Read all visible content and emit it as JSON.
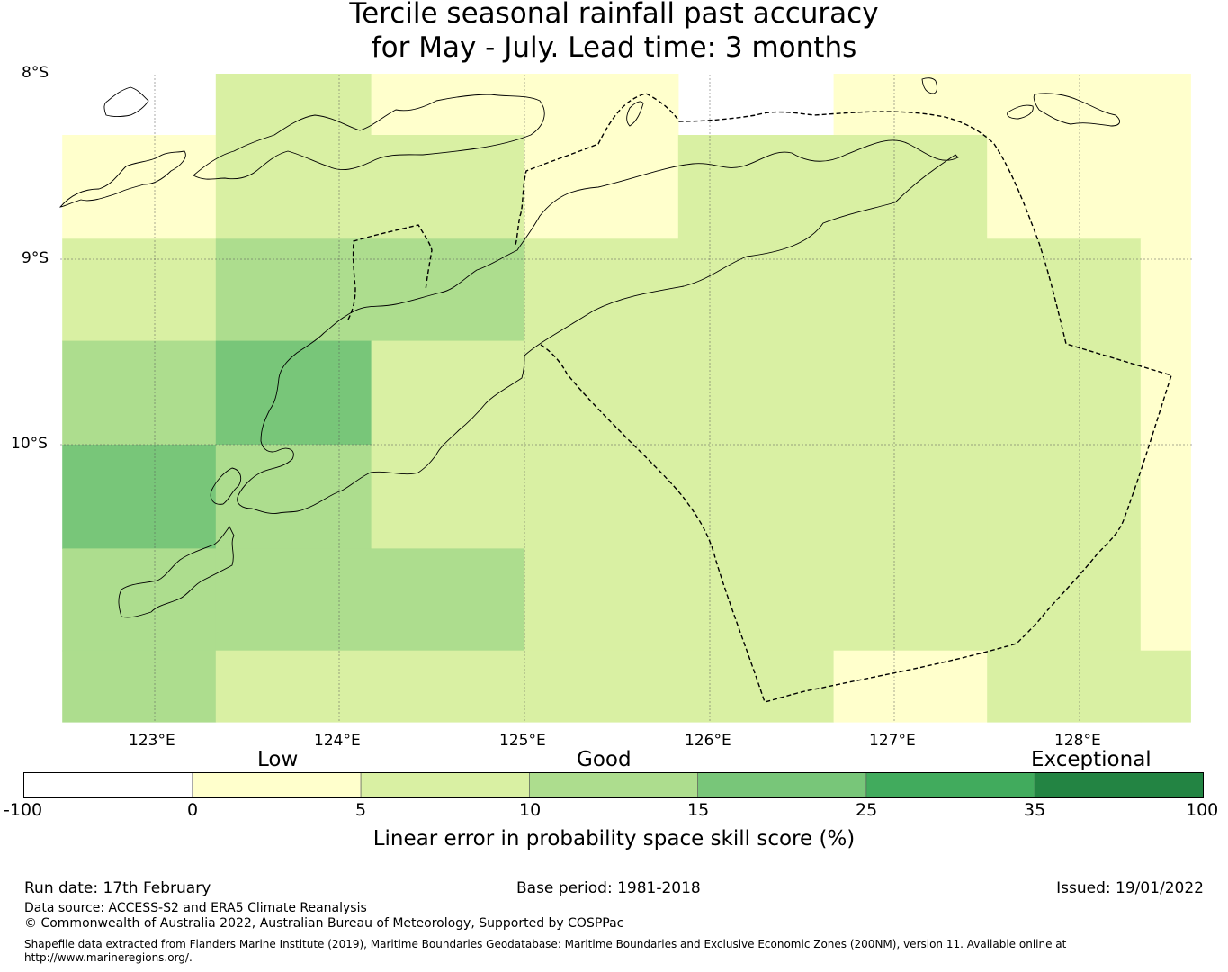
{
  "title": {
    "line1": "Tercile seasonal rainfall past accuracy",
    "line2": "for May - July. Lead time: 3 months"
  },
  "map": {
    "lat_labels": [
      "8°S",
      "9°S",
      "10°S"
    ],
    "lon_labels": [
      "123°E",
      "124°E",
      "125°E",
      "126°E",
      "127°E",
      "128°E"
    ],
    "grid": {
      "lon_edges": [
        122.5,
        123.33,
        124.17,
        125.0,
        125.83,
        126.67,
        127.5,
        128.33,
        128.6
      ],
      "lat_rows": [
        {
          "lat_top": -8.0,
          "lat_bottom": -8.33,
          "classes": [
            null,
            "5-10",
            "0-5",
            "0-5",
            null,
            "0-5",
            "0-5",
            "0-5"
          ]
        },
        {
          "lat_top": -8.33,
          "lat_bottom": -8.89,
          "classes": [
            "0-5",
            "5-10",
            "5-10",
            "0-5",
            "5-10",
            "5-10",
            "0-5",
            "0-5"
          ]
        },
        {
          "lat_top": -8.89,
          "lat_bottom": -9.44,
          "classes": [
            "5-10",
            "10-15",
            "10-15",
            "5-10",
            "5-10",
            "5-10",
            "5-10",
            "0-5"
          ]
        },
        {
          "lat_top": -9.44,
          "lat_bottom": -10.0,
          "classes": [
            "10-15",
            "15-25",
            "5-10",
            "5-10",
            "5-10",
            "5-10",
            "5-10",
            "0-5"
          ]
        },
        {
          "lat_top": -10.0,
          "lat_bottom": -10.56,
          "classes": [
            "15-25",
            "10-15",
            "5-10",
            "5-10",
            "5-10",
            "5-10",
            "5-10",
            "0-5"
          ]
        },
        {
          "lat_top": -10.56,
          "lat_bottom": -11.11,
          "classes": [
            "10-15",
            "10-15",
            "10-15",
            "5-10",
            "5-10",
            "5-10",
            "5-10",
            "0-5"
          ]
        },
        {
          "lat_top": -11.11,
          "lat_bottom": -11.5,
          "classes": [
            "10-15",
            "5-10",
            "5-10",
            "5-10",
            "5-10",
            "0-5",
            "5-10",
            "5-10"
          ]
        }
      ]
    }
  },
  "colorbar": {
    "words": [
      "Low",
      "Good",
      "Exceptional"
    ],
    "ticks": [
      "-100",
      "0",
      "5",
      "10",
      "15",
      "25",
      "35",
      "100"
    ],
    "segments": [
      {
        "range": "-100 to 0",
        "color": "#ffffff"
      },
      {
        "range": "0 to 5",
        "color": "#ffffcc"
      },
      {
        "range": "5 to 10",
        "color": "#d9f0a3"
      },
      {
        "range": "10 to 15",
        "color": "#addd8e"
      },
      {
        "range": "15 to 25",
        "color": "#78c679"
      },
      {
        "range": "25 to 35",
        "color": "#41ab5d"
      },
      {
        "range": "35 to 100",
        "color": "#238443"
      }
    ],
    "label": "Linear error in probability space skill score (%)"
  },
  "footer": {
    "run_date": "Run date: 17th February",
    "base_period": "Base period: 1981-2018",
    "issued": "Issued: 19/01/2022",
    "data_source": "Data source: ACCESS-S2 and ERA5 Climate Reanalysis",
    "copyright": "© Commonwealth of Australia 2022, Australian Bureau of Meteorology, Supported by COSPPac",
    "shapefile_line1": "Shapefile data extracted from Flanders Marine Institute (2019), Maritime Boundaries Geodatabase: Maritime Boundaries and Exclusive Economic Zones (200NM), version 11. Available online at",
    "shapefile_line2": "http://www.marineregions.org/."
  }
}
